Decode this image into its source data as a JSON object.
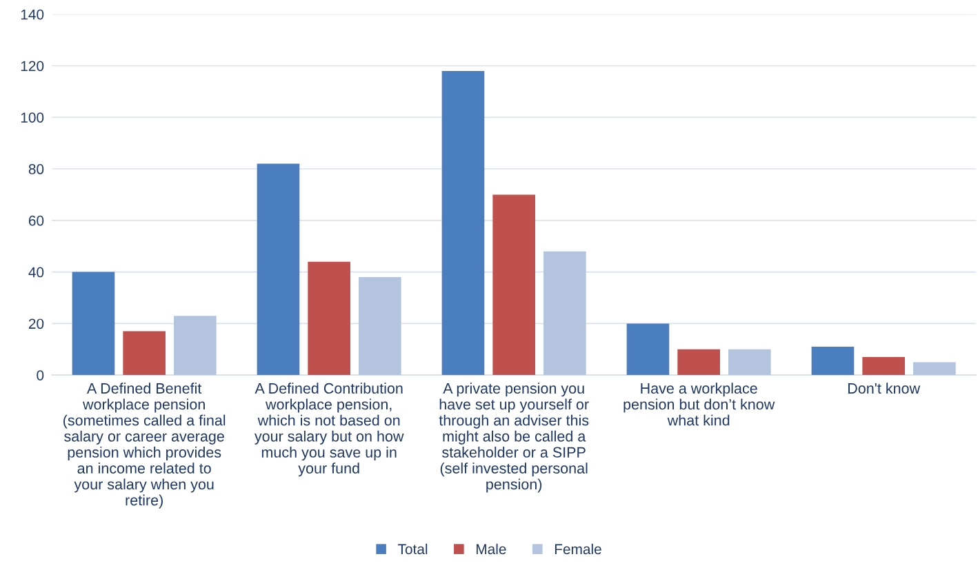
{
  "chart_data": {
    "type": "bar",
    "categories": [
      "A Defined Benefit\nworkplace pension\n(sometimes called a final\nsalary or career average\npension which provides\nan income related to\nyour salary when you\nretire)",
      "A Defined Contribution\nworkplace pension,\nwhich is not based on\nyour salary but on how\nmuch you save up in\nyour fund",
      "A private pension you\nhave set up yourself or\nthrough an adviser this\nmight also be called a\nstakeholder or a SIPP\n(self invested personal\npension)",
      "Have a workplace\npension but don’t know\nwhat kind",
      "Don't know"
    ],
    "series": [
      {
        "name": "Total",
        "color": "#4a7ebf",
        "values": [
          40,
          82,
          118,
          20,
          11
        ]
      },
      {
        "name": "Male",
        "color": "#c0504d",
        "values": [
          17,
          44,
          70,
          10,
          7
        ]
      },
      {
        "name": "Female",
        "color": "#b4c4de",
        "values": [
          23,
          38,
          48,
          10,
          5
        ]
      }
    ],
    "ylim": [
      0,
      140
    ],
    "yticks": [
      0,
      20,
      40,
      60,
      80,
      100,
      120,
      140
    ],
    "grid": "y",
    "legend": "bottom"
  }
}
